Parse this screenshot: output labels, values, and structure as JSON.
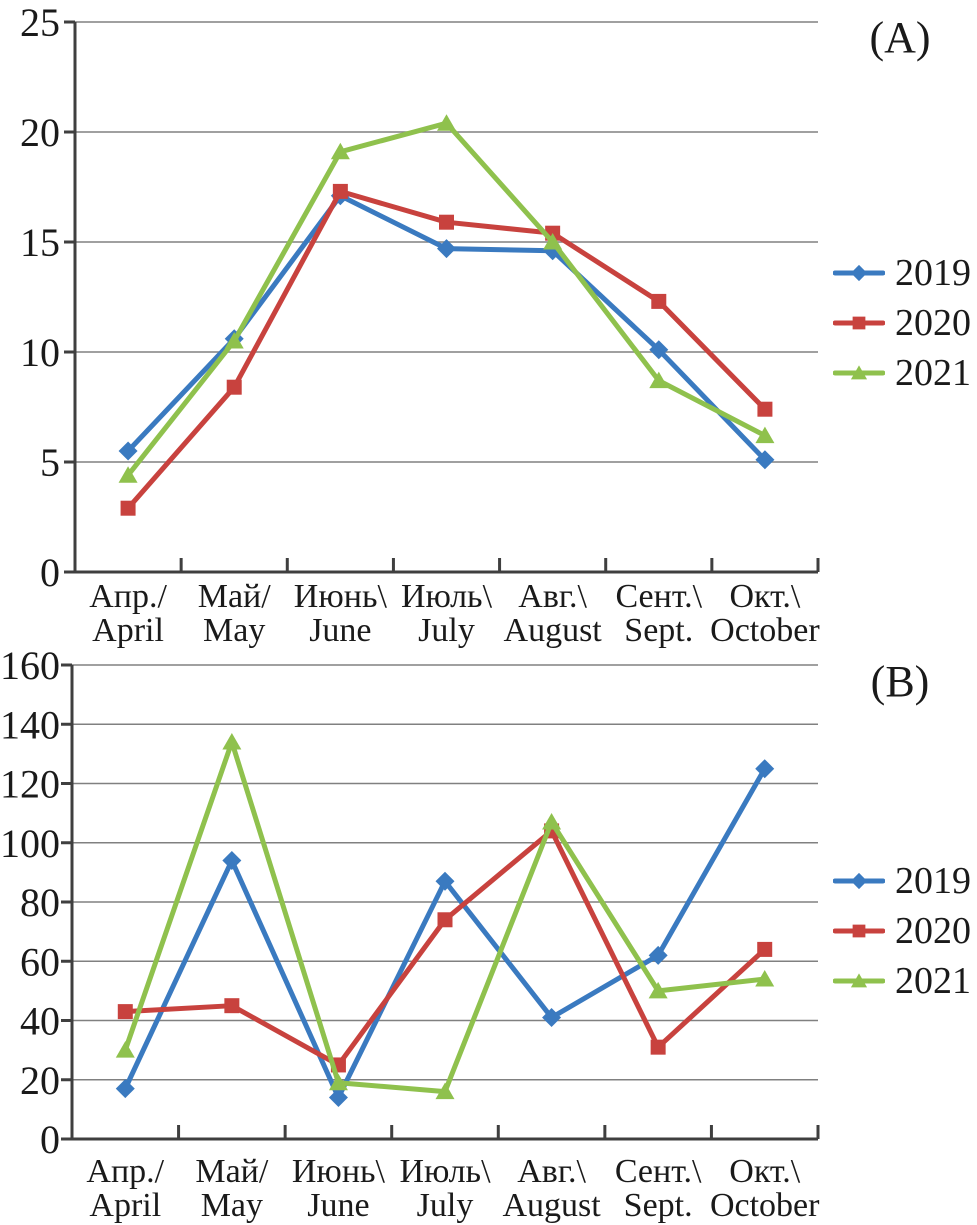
{
  "style": {
    "background": "#FFFFFF",
    "grid_color": "#808080",
    "axis_color": "#3F3F3F",
    "text_color": "#1A1A1A",
    "series_colors": {
      "2019": "#3A7AC0",
      "2020": "#C8423E",
      "2021": "#8FC14D"
    }
  },
  "chart_data": [
    {
      "type": "line",
      "panel_label": "(A)",
      "categories_ru": [
        "Апр./",
        "Май/",
        "Июнь\\",
        "Июль\\",
        "Авг.\\",
        "Сент.\\",
        "Окт.\\"
      ],
      "categories_en": [
        "April",
        "May",
        "June",
        "July",
        "August",
        "Sept.",
        "October"
      ],
      "ylim": [
        0,
        25
      ],
      "ytick_step": 5,
      "ytick_labels": [
        "0",
        "5",
        "10",
        "15",
        "20",
        "25"
      ],
      "grid": "horizontal",
      "legend_position": "right",
      "series": [
        {
          "name": "2019",
          "color": "#3A7AC0",
          "marker": "diamond",
          "values": [
            5.5,
            10.6,
            17.1,
            14.7,
            14.6,
            10.1,
            5.1
          ]
        },
        {
          "name": "2020",
          "color": "#C8423E",
          "marker": "square",
          "values": [
            2.9,
            8.4,
            17.3,
            15.9,
            15.4,
            12.3,
            7.4
          ]
        },
        {
          "name": "2021",
          "color": "#8FC14D",
          "marker": "triangle",
          "values": [
            4.4,
            10.5,
            19.1,
            20.4,
            15.0,
            8.7,
            6.2
          ]
        }
      ]
    },
    {
      "type": "line",
      "panel_label": "(B)",
      "categories_ru": [
        "Апр./",
        "Май/",
        "Июнь\\",
        "Июль\\",
        "Авг.\\",
        "Сент.\\",
        "Окт.\\"
      ],
      "categories_en": [
        "April",
        "May",
        "June",
        "July",
        "August",
        "Sept.",
        "October"
      ],
      "ylim": [
        0,
        160
      ],
      "ytick_step": 20,
      "ytick_labels": [
        "0",
        "20",
        "40",
        "60",
        "80",
        "100",
        "120",
        "140",
        "160"
      ],
      "grid": "horizontal",
      "legend_position": "right",
      "series": [
        {
          "name": "2019",
          "color": "#3A7AC0",
          "marker": "diamond",
          "values": [
            17,
            94,
            14,
            87,
            41,
            62,
            125
          ]
        },
        {
          "name": "2020",
          "color": "#C8423E",
          "marker": "square",
          "values": [
            43,
            45,
            25,
            74,
            104,
            31,
            64
          ]
        },
        {
          "name": "2021",
          "color": "#8FC14D",
          "marker": "triangle",
          "values": [
            30,
            134,
            19,
            16,
            107,
            50,
            54
          ]
        }
      ]
    }
  ]
}
